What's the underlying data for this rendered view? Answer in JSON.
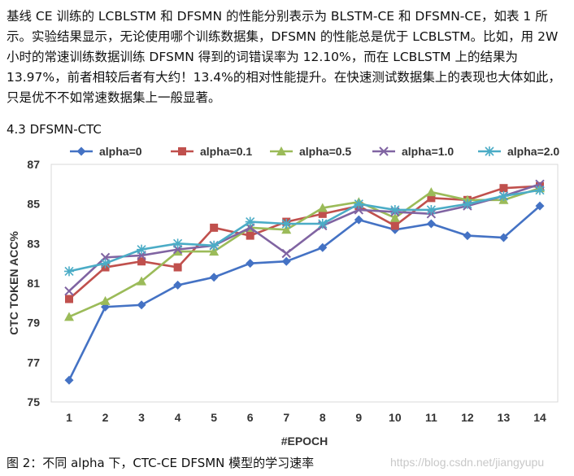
{
  "document": {
    "paragraph": "基线 CE 训练的 LCBLSTM 和 DFSMN 的性能分别表示为 BLSTM-CE 和 DFSMN-CE，如表 1 所示。实验结果显示，无论使用哪个训练数据集，DFSMN 的性能总是优于 LCBLSTM。比如，用 2W 小时的常速训练数据训练 DFSMN 得到的词错误率为 12.10%，而在 LCBLSTM 上的结果为 13.97%，前者相较后者有大约！13.4%的相对性能提升。在快速测试数据集上的表现也大体如此，只是优不不如常速数据集上一般显著。",
    "section_title": "4.3 DFSMN-CTC",
    "caption": "图 2：不同 alpha 下，CTC-CE DFSMN 模型的学习速率",
    "watermark": "https://blog.csdn.net/jiangyupu"
  },
  "chart_data": {
    "type": "line",
    "title": "",
    "xlabel": "#EPOCH",
    "ylabel": "CTC TOKEN ACC%",
    "x": [
      1,
      2,
      3,
      4,
      5,
      6,
      7,
      8,
      9,
      10,
      11,
      12,
      13,
      14
    ],
    "ylim": [
      75,
      87
    ],
    "yticks": [
      75,
      77,
      79,
      81,
      83,
      85,
      87
    ],
    "grid": false,
    "legend_position": "top",
    "series": [
      {
        "name": "alpha=0",
        "color": "#4472c4",
        "marker": "diamond",
        "values": [
          76.1,
          79.8,
          79.9,
          80.9,
          81.3,
          82.0,
          82.1,
          82.8,
          84.2,
          83.7,
          84.0,
          83.4,
          83.3,
          84.9
        ]
      },
      {
        "name": "alpha=0.1",
        "color": "#c0504d",
        "marker": "square",
        "values": [
          80.2,
          81.8,
          82.1,
          81.8,
          83.8,
          83.4,
          84.1,
          84.5,
          84.9,
          83.9,
          85.3,
          85.2,
          85.8,
          85.9
        ]
      },
      {
        "name": "alpha=0.5",
        "color": "#9bbb59",
        "marker": "triangle",
        "values": [
          79.3,
          80.1,
          81.1,
          82.6,
          82.6,
          83.8,
          83.7,
          84.8,
          85.1,
          84.3,
          85.6,
          85.2,
          85.2,
          85.8
        ]
      },
      {
        "name": "alpha=1.0",
        "color": "#8064a2",
        "marker": "x",
        "values": [
          80.6,
          82.3,
          82.4,
          82.7,
          82.9,
          83.8,
          82.5,
          83.9,
          84.7,
          84.6,
          84.5,
          84.9,
          85.4,
          86.0
        ]
      },
      {
        "name": "alpha=2.0",
        "color": "#4bacc6",
        "marker": "star",
        "values": [
          81.6,
          82.0,
          82.7,
          83.0,
          82.9,
          84.1,
          84.0,
          84.0,
          85.0,
          84.7,
          84.7,
          85.0,
          85.4,
          85.7
        ]
      }
    ]
  }
}
